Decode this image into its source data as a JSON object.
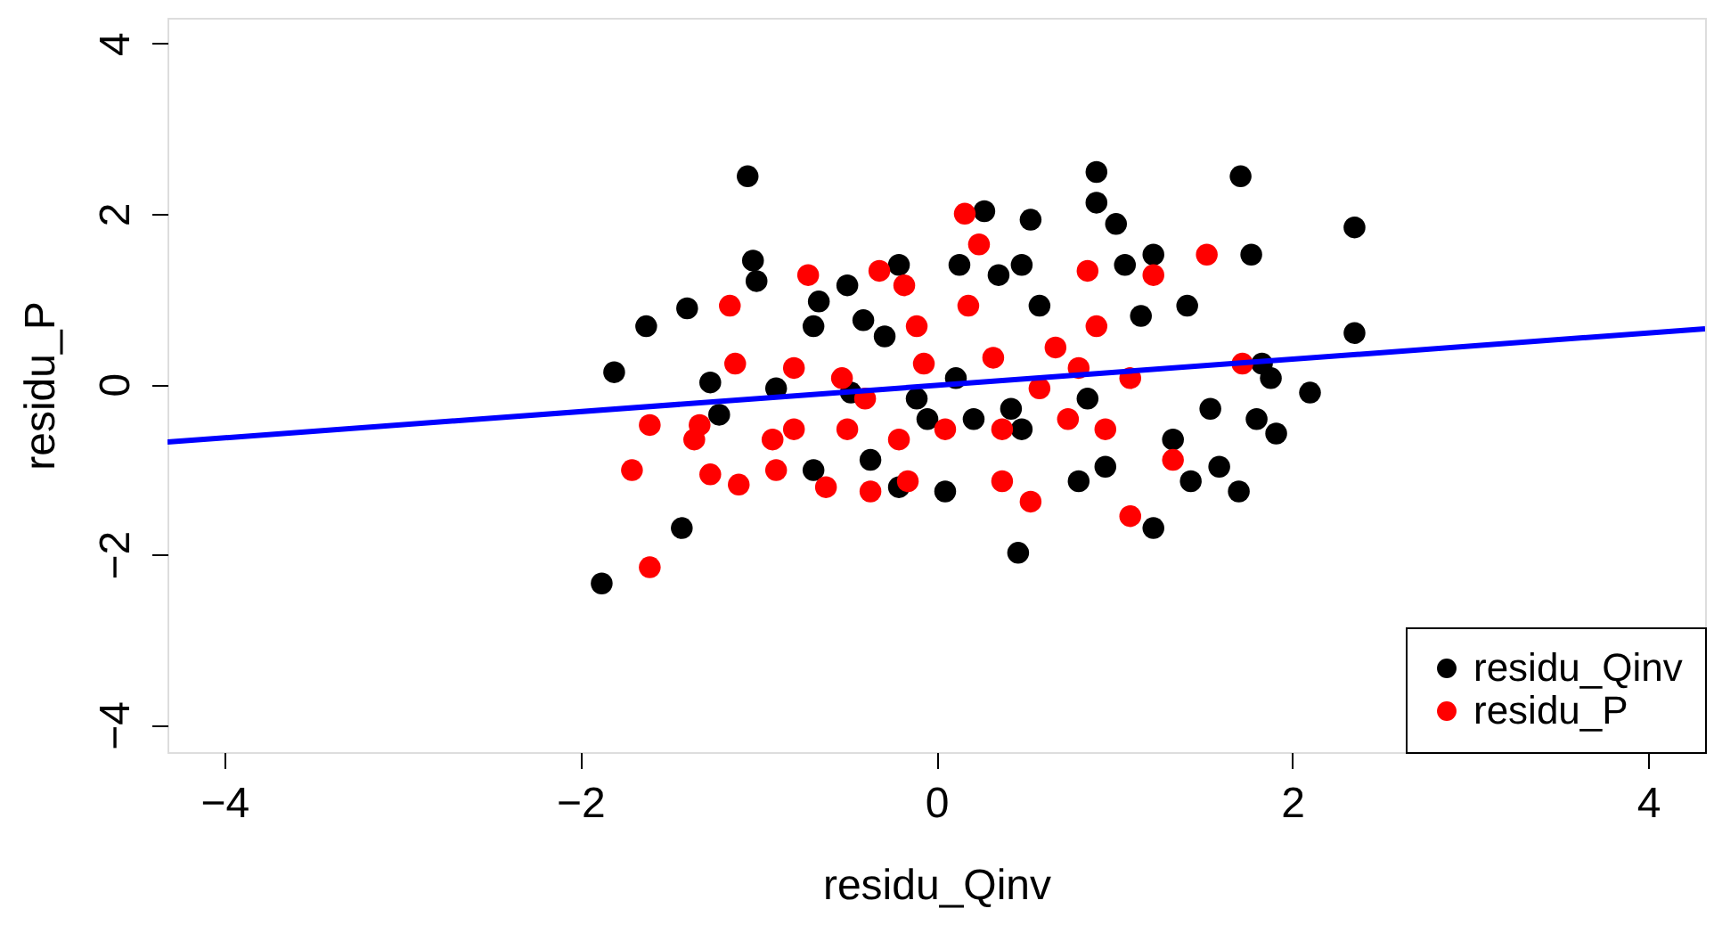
{
  "chart_data": {
    "type": "scatter",
    "xlabel": "residu_Qinv",
    "ylabel": "residu_P",
    "xlim": [
      -4.32,
      4.32
    ],
    "ylim": [
      -4.32,
      4.3
    ],
    "xticks": [
      -4,
      -2,
      0,
      2,
      4
    ],
    "yticks": [
      -4,
      -2,
      0,
      2,
      4
    ],
    "grid": false,
    "legend": "bottom right",
    "series": [
      {
        "name": "residu_Qinv",
        "color": "#000000",
        "marker": "circle",
        "x": [
          -1.88,
          -1.81,
          -1.63,
          -1.4,
          -1.43,
          -1.27,
          -1.22,
          -1.06,
          -1.03,
          -1.01,
          -0.9,
          -0.66,
          -0.69,
          -0.5,
          -0.48,
          -0.41,
          -0.29,
          -0.21,
          -0.37,
          -0.21,
          -0.11,
          -0.05,
          0.05,
          0.13,
          0.27,
          0.35,
          0.42,
          0.48,
          0.46,
          0.53,
          0.8,
          0.85,
          0.9,
          0.9,
          1.01,
          1.06,
          1.15,
          0.95,
          1.22,
          1.33,
          1.43,
          1.22,
          1.41,
          1.54,
          1.59,
          1.71,
          1.77,
          1.8,
          1.91,
          1.83,
          1.88,
          2.1,
          2.35,
          2.35,
          1.7,
          0.48,
          0.21,
          0.11,
          0.58,
          -0.69
        ],
        "values": [
          -2.34,
          0.14,
          0.68,
          0.89,
          -1.69,
          0.02,
          -0.36,
          2.44,
          1.45,
          1.21,
          -0.05,
          0.97,
          0.68,
          1.16,
          -0.1,
          0.75,
          0.56,
          1.4,
          -0.89,
          -1.21,
          -0.17,
          -0.41,
          -1.26,
          1.4,
          2.03,
          1.28,
          -0.29,
          1.4,
          -1.98,
          1.93,
          -1.14,
          -0.17,
          2.13,
          2.49,
          1.88,
          1.4,
          0.8,
          -0.97,
          1.52,
          -0.65,
          -1.14,
          -1.69,
          0.92,
          -0.29,
          -0.97,
          2.44,
          1.52,
          -0.41,
          -0.58,
          0.24,
          0.07,
          -0.1,
          1.84,
          0.6,
          -1.26,
          -0.53,
          -0.41,
          0.07,
          0.92,
          -1.01
        ]
      },
      {
        "name": "residu_P",
        "color": "#ff0000",
        "marker": "circle",
        "x": [
          -1.61,
          -1.71,
          -1.61,
          -1.36,
          -1.27,
          -1.11,
          -1.16,
          -1.13,
          -0.92,
          -0.9,
          -0.8,
          -0.72,
          -0.8,
          -0.62,
          -0.5,
          -0.53,
          -0.4,
          -0.32,
          -0.18,
          -0.11,
          -0.07,
          -0.21,
          -0.16,
          0.16,
          0.24,
          0.18,
          0.32,
          0.37,
          0.37,
          0.53,
          0.67,
          0.74,
          0.85,
          0.9,
          0.95,
          1.09,
          1.09,
          1.33,
          1.52,
          1.22,
          0.8,
          1.72,
          0.05,
          0.58,
          -0.37,
          -1.33
        ],
        "values": [
          -2.15,
          -1.01,
          -0.48,
          -0.65,
          -1.06,
          -1.18,
          0.92,
          0.24,
          -0.65,
          -1.01,
          -0.53,
          1.28,
          0.19,
          -1.21,
          -0.53,
          0.07,
          -0.17,
          1.33,
          1.16,
          0.68,
          0.24,
          -0.65,
          -1.14,
          2.0,
          1.64,
          0.92,
          0.31,
          -0.53,
          -1.14,
          -1.38,
          0.43,
          -0.41,
          1.33,
          0.68,
          -0.53,
          0.07,
          -1.55,
          -0.89,
          1.52,
          1.28,
          0.19,
          0.24,
          -0.53,
          -0.05,
          -1.26,
          -0.48
        ]
      },
      {
        "type": "line",
        "color": "#0000ff",
        "x": [
          -4.32,
          4.32
        ],
        "values": [
          -0.68,
          0.65
        ]
      }
    ]
  }
}
